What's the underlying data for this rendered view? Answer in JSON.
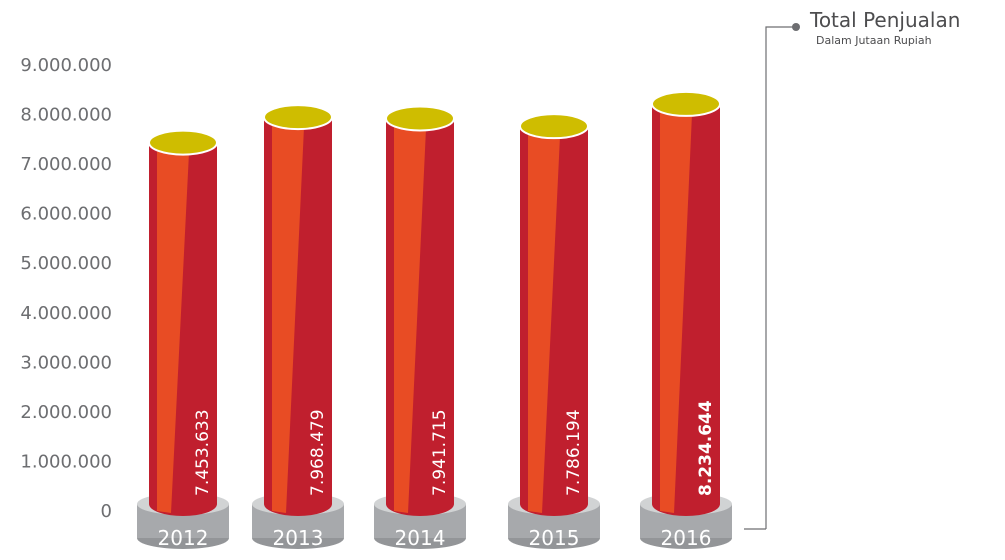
{
  "chart_data": {
    "type": "bar",
    "legend": {
      "title": "Total Penjualan",
      "subtitle": "Dalam Jutaan Rupiah"
    },
    "categories": [
      "2012",
      "2013",
      "2014",
      "2015",
      "2016"
    ],
    "values": [
      7453633,
      7968479,
      7941715,
      7786194,
      8234644
    ],
    "value_labels": [
      "7.453.633",
      "7.968.479",
      "7.941.715",
      "7.786.194",
      "8.234.644"
    ],
    "highlight_index": 4,
    "y_ticks": [
      "0",
      "1.000.000",
      "2.000.000",
      "3.000.000",
      "4.000.000",
      "5.000.000",
      "6.000.000",
      "7.000.000",
      "8.000.000",
      "9.000.000"
    ],
    "ylim": [
      0,
      9000000
    ],
    "grid": false,
    "legend_position": "top-right",
    "colors": {
      "bar_body": "#c01f2e",
      "bar_highlight": "#e84c24",
      "bar_top": "#cfbd00",
      "base": "#a7a9ac",
      "base_top": "#d1d3d4",
      "text": "#6d6e71"
    }
  }
}
